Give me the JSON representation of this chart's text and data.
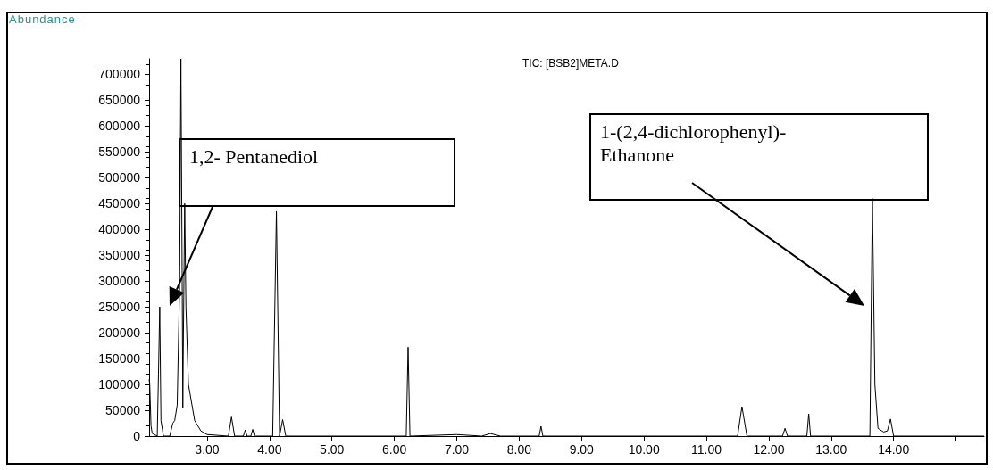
{
  "chart_data": {
    "type": "line",
    "title": "TIC: [BSB2]META.D",
    "ylabel": "Abundance",
    "x": [
      2.07,
      2.08,
      2.1,
      2.12,
      2.2,
      2.22,
      2.24,
      2.26,
      2.3,
      2.4,
      2.45,
      2.48,
      2.52,
      2.56,
      2.58,
      2.6,
      2.61,
      2.62,
      2.64,
      2.66,
      2.7,
      2.8,
      2.9,
      3.0,
      3.34,
      3.39,
      3.44,
      3.58,
      3.61,
      3.64,
      3.7,
      3.73,
      3.76,
      4.05,
      4.11,
      4.16,
      4.21,
      4.26,
      6.19,
      6.22,
      6.25,
      7.0,
      7.4,
      7.54,
      7.7,
      8.32,
      8.35,
      8.38,
      11.5,
      11.57,
      11.65,
      12.22,
      12.26,
      12.3,
      12.61,
      12.64,
      12.67,
      13.62,
      13.66,
      13.7,
      13.75,
      13.84,
      13.9,
      13.95,
      14.0,
      15.45
    ],
    "values": [
      110000,
      100000,
      20000,
      5000,
      0,
      120000,
      250000,
      30000,
      0,
      0,
      25000,
      30000,
      60000,
      300000,
      730000,
      300000,
      55000,
      200000,
      450000,
      250000,
      100000,
      30000,
      10000,
      3000,
      0,
      37000,
      0,
      0,
      12000,
      0,
      0,
      13000,
      0,
      0,
      435000,
      0,
      32000,
      0,
      0,
      172000,
      0,
      3000,
      0,
      5000,
      0,
      0,
      19000,
      0,
      0,
      57000,
      0,
      0,
      15000,
      0,
      0,
      43000,
      0,
      0,
      460000,
      100000,
      15000,
      8000,
      10000,
      33000,
      0,
      0
    ],
    "color": "#000000",
    "marker": "none",
    "line_style": "solid",
    "grid": false,
    "xlim": [
      2.07,
      15.45
    ],
    "xticks": [
      {
        "value": 3,
        "label": "3.00"
      },
      {
        "value": 4,
        "label": "4.00"
      },
      {
        "value": 5,
        "label": "5.00"
      },
      {
        "value": 6,
        "label": "6.00"
      },
      {
        "value": 7,
        "label": "7.00"
      },
      {
        "value": 8,
        "label": "8.00"
      },
      {
        "value": 9,
        "label": "9.00"
      },
      {
        "value": 10,
        "label": "10.00"
      },
      {
        "value": 11,
        "label": "11.00"
      },
      {
        "value": 12,
        "label": "12.00"
      },
      {
        "value": 13,
        "label": "13.00"
      },
      {
        "value": 14,
        "label": "14.00"
      },
      {
        "value": 15,
        "label": null
      }
    ],
    "ylim": [
      0,
      730000
    ],
    "yticks": [
      0,
      50000,
      100000,
      150000,
      200000,
      250000,
      300000,
      350000,
      400000,
      450000,
      500000,
      550000,
      600000,
      650000,
      700000
    ],
    "annotations": [
      "1,2- Pentanediol",
      "1-(2,4-dichlorophenyl)-\nEthanone"
    ]
  }
}
